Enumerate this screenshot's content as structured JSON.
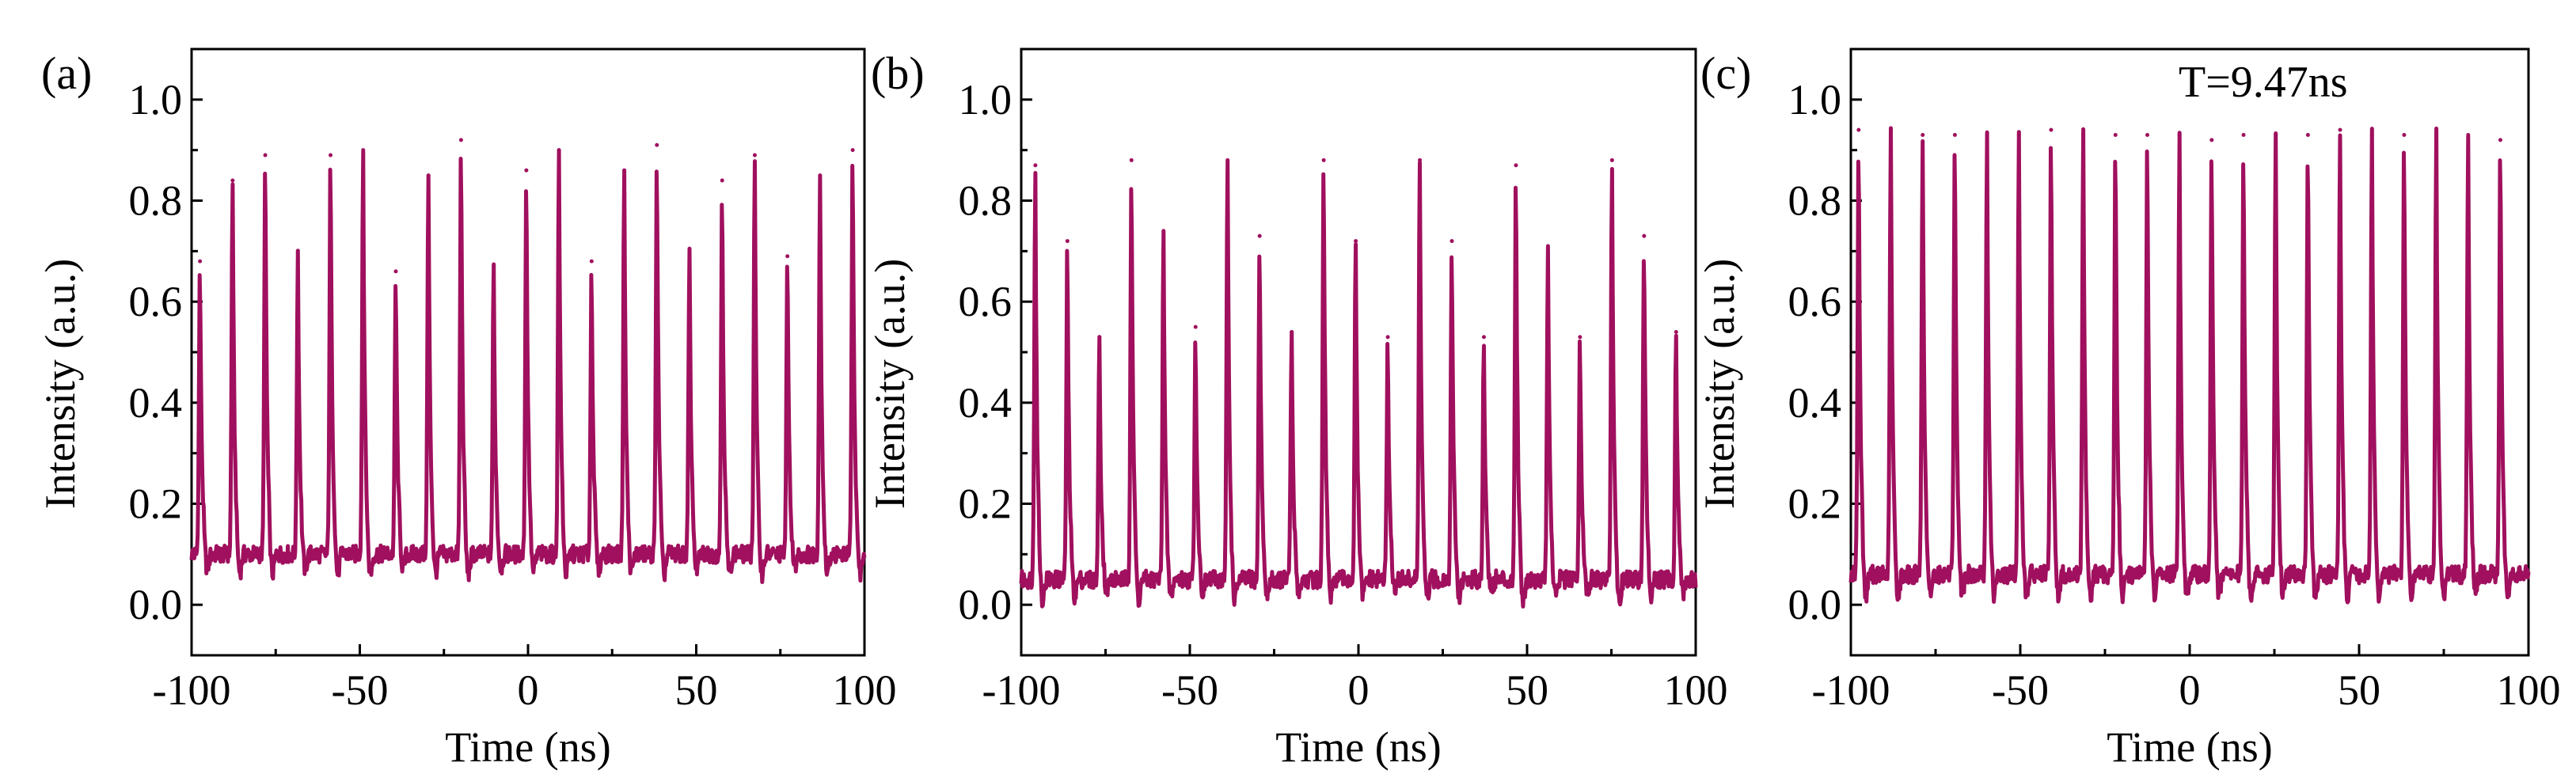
{
  "chart_data": [
    {
      "panel_label": "(a)",
      "type": "line",
      "xlabel": "Time (ns)",
      "ylabel": "Intensity (a.u.)",
      "xlim": [
        -100,
        100
      ],
      "ylim": [
        -0.1,
        1.1
      ],
      "xticks": [
        -100,
        -50,
        0,
        50,
        100
      ],
      "yticks": [
        0.0,
        0.2,
        0.4,
        0.6,
        0.8,
        1.0
      ],
      "xtick_labels": [
        "-100",
        "-50",
        "0",
        "50",
        "100"
      ],
      "ytick_labels": [
        "0.0",
        "0.2",
        "0.4",
        "0.6",
        "0.8",
        "1.0"
      ],
      "series": [
        {
          "name": "intensity",
          "color": "#a0105e",
          "baseline": 0.1,
          "pulse_times": [
            -97.5,
            -87.8,
            -78.1,
            -68.4,
            -58.7,
            -49.0,
            -39.3,
            -29.6,
            -19.9,
            -10.2,
            -0.5,
            9.2,
            18.9,
            28.6,
            38.3,
            48.0,
            57.7,
            67.4,
            77.1,
            86.8,
            96.5
          ],
          "peak_values": [
            0.68,
            0.84,
            0.89,
            0.7,
            0.89,
            0.9,
            0.66,
            0.85,
            0.92,
            0.67,
            0.86,
            0.9,
            0.68,
            0.86,
            0.91,
            0.7,
            0.84,
            0.89,
            0.69,
            0.85,
            0.9
          ]
        }
      ]
    },
    {
      "panel_label": "(b)",
      "type": "line",
      "xlabel": "Time (ns)",
      "ylabel": "Intensity (a.u.)",
      "xlim": [
        -100,
        100
      ],
      "ylim": [
        -0.1,
        1.1
      ],
      "xticks": [
        -100,
        -50,
        0,
        50,
        100
      ],
      "yticks": [
        0.0,
        0.2,
        0.4,
        0.6,
        0.8,
        1.0
      ],
      "xtick_labels": [
        "-100",
        "-50",
        "0",
        "50",
        "100"
      ],
      "ytick_labels": [
        "0.0",
        "0.2",
        "0.4",
        "0.6",
        "0.8",
        "1.0"
      ],
      "series": [
        {
          "name": "intensity",
          "color": "#a0105e",
          "baseline": 0.05,
          "pulse_times": [
            -95.8,
            -86.3,
            -76.8,
            -67.3,
            -57.8,
            -48.3,
            -38.8,
            -29.3,
            -19.8,
            -10.3,
            -0.8,
            8.7,
            18.2,
            27.7,
            37.2,
            46.7,
            56.2,
            65.7,
            75.2,
            84.7,
            94.2
          ],
          "peak_values": [
            0.87,
            0.72,
            0.53,
            0.88,
            0.74,
            0.55,
            0.88,
            0.73,
            0.54,
            0.88,
            0.72,
            0.53,
            0.88,
            0.72,
            0.53,
            0.87,
            0.71,
            0.53,
            0.88,
            0.73,
            0.54
          ]
        }
      ]
    },
    {
      "panel_label": "(c)",
      "type": "line",
      "xlabel": "Time (ns)",
      "ylabel": "Intensity (a.u.)",
      "xlim": [
        -100,
        100
      ],
      "ylim": [
        -0.1,
        1.1
      ],
      "xticks": [
        -100,
        -50,
        0,
        50,
        100
      ],
      "yticks": [
        0.0,
        0.2,
        0.4,
        0.6,
        0.8,
        1.0
      ],
      "xtick_labels": [
        "-100",
        "-50",
        "0",
        "50",
        "100"
      ],
      "ytick_labels": [
        "0.0",
        "0.2",
        "0.4",
        "0.6",
        "0.8",
        "1.0"
      ],
      "annotation": "T=9.47ns",
      "series": [
        {
          "name": "intensity",
          "color": "#a0105e",
          "baseline": 0.06,
          "pulse_times": [
            -97.7,
            -88.2,
            -78.8,
            -69.3,
            -59.8,
            -50.4,
            -40.9,
            -31.4,
            -21.9,
            -12.5,
            -3.0,
            6.5,
            15.9,
            25.4,
            34.9,
            44.4,
            53.8,
            63.3,
            72.8,
            82.2,
            91.7
          ],
          "peak_values": [
            0.94,
            0.93,
            0.93,
            0.93,
            0.92,
            0.93,
            0.94,
            0.93,
            0.93,
            0.93,
            0.93,
            0.92,
            0.93,
            0.93,
            0.93,
            0.94,
            0.93,
            0.93,
            0.93,
            0.93,
            0.92
          ]
        }
      ]
    }
  ]
}
